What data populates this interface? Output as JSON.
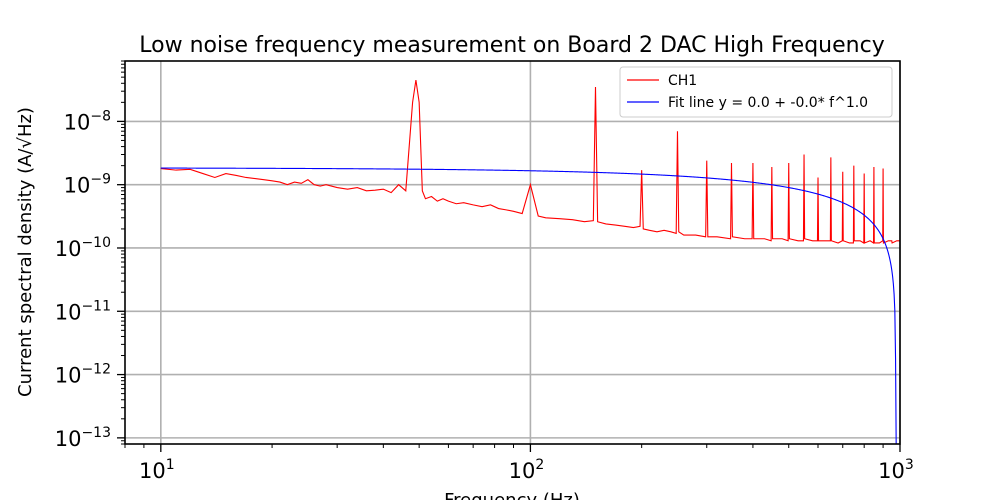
{
  "chart_data": {
    "type": "line",
    "title": "Low noise frequency measurement on Board 2 DAC High Frequency",
    "xlabel": "Frequency (Hz)",
    "ylabel": "Current spectral density (A/√Hz)",
    "xscale": "log",
    "yscale": "log",
    "xlim": [
      8,
      1000
    ],
    "ylim": [
      8e-14,
      9e-08
    ],
    "grid": true,
    "legend_position": "top-right",
    "x_ticks": [
      {
        "base": "10",
        "exp": "1",
        "value": 10
      },
      {
        "base": "10",
        "exp": "2",
        "value": 100
      },
      {
        "base": "10",
        "exp": "3",
        "value": 1000
      }
    ],
    "y_ticks": [
      {
        "base": "10",
        "exp": "−13",
        "value": 1e-13
      },
      {
        "base": "10",
        "exp": "−12",
        "value": 1e-12
      },
      {
        "base": "10",
        "exp": "−11",
        "value": 1e-11
      },
      {
        "base": "10",
        "exp": "−10",
        "value": 1e-10
      },
      {
        "base": "10",
        "exp": "−9",
        "value": 1e-09
      },
      {
        "base": "10",
        "exp": "−8",
        "value": 1e-08
      }
    ],
    "series": [
      {
        "name": "CH1",
        "color": "#ff0000",
        "x": [
          10,
          11,
          12,
          13,
          14,
          15,
          16,
          17,
          18,
          19,
          20,
          21,
          22,
          23,
          24,
          25,
          26,
          27,
          28,
          30,
          32,
          34,
          36,
          38,
          40,
          42,
          44,
          46,
          48,
          49,
          50,
          51,
          52,
          54,
          56,
          58,
          60,
          63,
          66,
          70,
          74,
          78,
          82,
          86,
          90,
          95,
          100,
          105,
          110,
          120,
          130,
          140,
          148,
          150,
          152,
          160,
          170,
          180,
          190,
          198,
          200,
          202,
          210,
          220,
          230,
          240,
          248,
          250,
          252,
          260,
          280,
          298,
          300,
          302,
          320,
          348,
          350,
          352,
          380,
          398,
          400,
          402,
          430,
          448,
          450,
          452,
          480,
          498,
          500,
          502,
          530,
          548,
          550,
          552,
          580,
          598,
          600,
          602,
          630,
          648,
          650,
          652,
          680,
          698,
          700,
          702,
          730,
          748,
          750,
          752,
          780,
          798,
          800,
          802,
          830,
          848,
          850,
          852,
          880,
          898,
          900,
          902,
          930,
          948,
          950,
          952,
          980,
          1000
        ],
        "y": [
          1.8e-09,
          1.7e-09,
          1.75e-09,
          1.5e-09,
          1.3e-09,
          1.5e-09,
          1.4e-09,
          1.3e-09,
          1.25e-09,
          1.2e-09,
          1.15e-09,
          1.1e-09,
          1e-09,
          1.1e-09,
          1.05e-09,
          1.2e-09,
          1e-09,
          9.5e-10,
          1e-09,
          9e-10,
          8.5e-10,
          9e-10,
          8e-10,
          8.2e-10,
          8.5e-10,
          7.5e-10,
          1e-09,
          8e-10,
          2e-08,
          4.5e-08,
          2e-08,
          8e-10,
          6e-10,
          6.5e-10,
          5.5e-10,
          6e-10,
          5.5e-10,
          5e-10,
          5.2e-10,
          4.8e-10,
          4.5e-10,
          4.8e-10,
          4.2e-10,
          4e-10,
          3.8e-10,
          3.5e-10,
          1e-09,
          3.2e-10,
          3e-10,
          2.9e-10,
          2.8e-10,
          2.6e-10,
          2.7e-10,
          3.5e-08,
          2.6e-10,
          2.4e-10,
          2.3e-10,
          2.2e-10,
          2.1e-10,
          2.2e-10,
          1.7e-09,
          2e-10,
          1.9e-10,
          1.8e-10,
          1.9e-10,
          1.8e-10,
          1.7e-10,
          7e-09,
          1.8e-10,
          1.6e-10,
          1.6e-10,
          1.5e-10,
          2.4e-09,
          1.5e-10,
          1.5e-10,
          1.4e-10,
          2.2e-09,
          1.5e-10,
          1.4e-10,
          1.4e-10,
          2.2e-09,
          1.4e-10,
          1.4e-10,
          1.3e-10,
          1.9e-09,
          1.4e-10,
          1.4e-10,
          1.3e-10,
          2.2e-09,
          1.4e-10,
          1.3e-10,
          1.3e-10,
          3e-09,
          1.4e-10,
          1.3e-10,
          1.3e-10,
          1.3e-09,
          1.3e-10,
          1.3e-10,
          1.3e-10,
          2.7e-09,
          1.3e-10,
          1.2e-10,
          1.3e-10,
          1.6e-09,
          1.3e-10,
          1.2e-10,
          1.2e-10,
          2e-09,
          1.3e-10,
          1.3e-10,
          1.2e-10,
          1.5e-09,
          1.2e-10,
          1.3e-10,
          1.2e-10,
          1.9e-09,
          1.2e-10,
          1.2e-10,
          1.3e-10,
          1.8e-09,
          1.2e-10,
          1.3e-10,
          1.3e-10,
          1.3e-10,
          1.2e-10,
          1.3e-10,
          1.3e-10
        ]
      },
      {
        "name": "Fit line y = 0.0 + -0.0* f^1.0",
        "color": "#0000ff",
        "intercept": 1.85e-09,
        "slope": -1.9e-12,
        "exponent": 1.0
      }
    ]
  }
}
